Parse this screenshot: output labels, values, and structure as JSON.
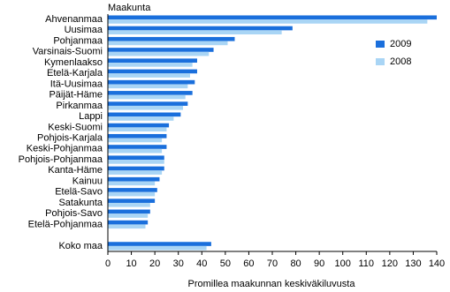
{
  "chart_data": {
    "type": "hbar",
    "y_label": "Maakunta",
    "x_label": "Promillea maakunnan keskiväkiluvusta",
    "categories": [
      "Ahvenanmaa",
      "Uusimaa",
      "Pohjanmaa",
      "Varsinais-Suomi",
      "Kymenlaakso",
      "Etelä-Karjala",
      "Itä-Uusimaa",
      "Päijät-Häme",
      "Pirkanmaa",
      "Lappi",
      "Keski-Suomi",
      "Pohjois-Karjala",
      "Keski-Pohjanmaa",
      "Pohjois-Pohjanmaa",
      "Kanta-Häme",
      "Kainuu",
      "Etelä-Savo",
      "Satakunta",
      "Pohjois-Savo",
      "Etelä-Pohjanmaa",
      null,
      "Koko maa"
    ],
    "series": [
      {
        "name": "2009",
        "color": "#1a6fdc",
        "values": [
          140,
          78.6,
          54,
          45,
          38,
          38,
          37,
          36,
          34,
          31,
          26,
          25,
          25,
          24,
          24,
          22,
          21,
          20,
          18,
          17,
          null,
          44
        ]
      },
      {
        "name": "2008",
        "color": "#a9d5f5",
        "values": [
          136,
          74,
          51,
          43,
          36,
          35,
          34,
          33,
          32,
          28,
          25,
          23,
          23,
          24,
          23,
          20,
          20,
          18,
          17,
          16,
          null,
          42
        ]
      }
    ],
    "xlim": [
      0,
      140
    ],
    "xticks": [
      0,
      10,
      20,
      30,
      40,
      50,
      60,
      70,
      80,
      90,
      100,
      110,
      120,
      130,
      140
    ],
    "grid": false,
    "legend": "upper right"
  }
}
